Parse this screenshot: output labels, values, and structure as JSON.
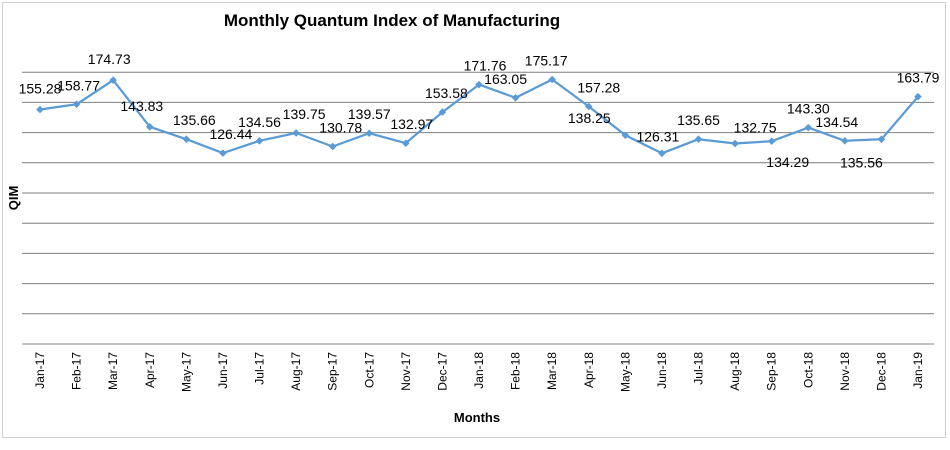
{
  "chart_data": {
    "type": "line",
    "title": "Monthly Quantum Index of Manufacturing",
    "xlabel": "Months",
    "ylabel": "QIM",
    "ylim": [
      0,
      180
    ],
    "grid": true,
    "categories": [
      "Jan-17",
      "Feb-17",
      "Mar-17",
      "Apr-17",
      "May-17",
      "Jun-17",
      "Jul-17",
      "Aug-17",
      "Sep-17",
      "Oct-17",
      "Nov-17",
      "Dec-17",
      "Jan-18",
      "Feb-18",
      "Mar-18",
      "Apr-18",
      "May-18",
      "Jun-18",
      "Jul-18",
      "Aug-18",
      "Sep-18",
      "Oct-18",
      "Nov-18",
      "Dec-18",
      "Jan-19"
    ],
    "series": [
      {
        "name": "QIM",
        "color": "#5b9bd5",
        "values": [
          155.28,
          158.77,
          174.73,
          143.83,
          135.66,
          126.44,
          134.56,
          139.75,
          130.78,
          139.57,
          132.97,
          153.58,
          171.76,
          163.05,
          175.17,
          157.28,
          138.25,
          126.31,
          135.65,
          132.75,
          134.29,
          143.3,
          134.54,
          135.56,
          163.79
        ],
        "labels": [
          "155.28",
          "158.77",
          "174.73",
          "143.83",
          "135.66",
          "126.44",
          "134.56",
          "139.75",
          "130.78",
          "139.57",
          "132.97",
          "153.58",
          "171.76",
          "163.05",
          "175.17",
          "157.28",
          "138.25",
          "126.31",
          "135.65",
          "132.75",
          "134.29",
          "143.30",
          "134.54",
          "135.56",
          "163.79"
        ]
      }
    ]
  }
}
